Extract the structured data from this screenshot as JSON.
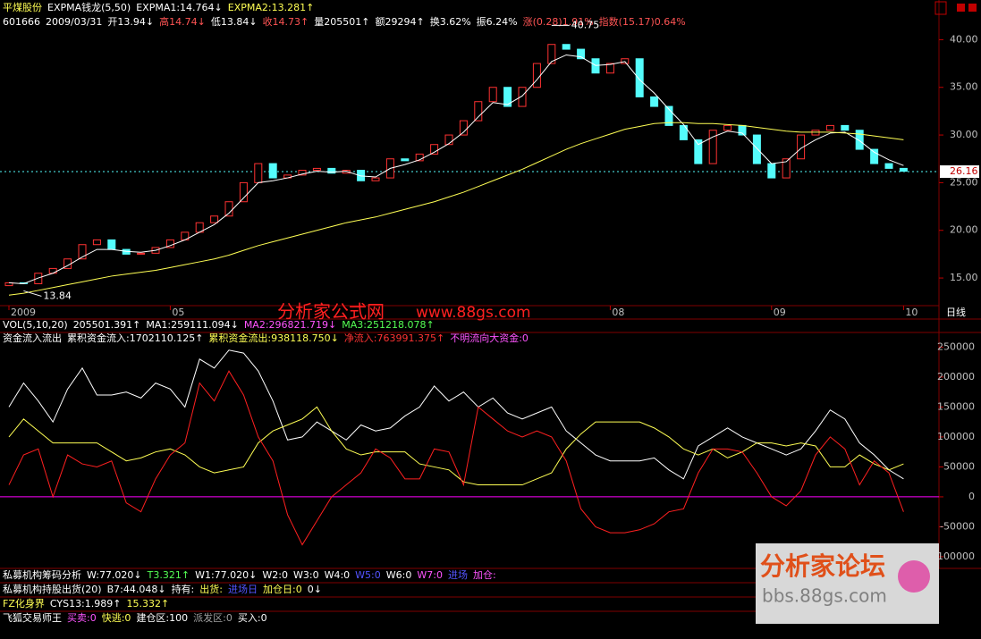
{
  "header": {
    "line1": [
      {
        "text": "平煤股份",
        "color": "#ffff54"
      },
      {
        "text": "EXPMA钱龙(5,50)",
        "color": "#ffffff"
      },
      {
        "text": "EXPMA1:14.764↓",
        "color": "#ffffff"
      },
      {
        "text": "EXPMA2:13.281↑",
        "color": "#ffff54"
      }
    ],
    "line2": [
      {
        "text": "601666",
        "color": "#ffffff"
      },
      {
        "text": "2009/03/31",
        "color": "#ffffff"
      },
      {
        "text": "开13.94↓",
        "color": "#ffffff"
      },
      {
        "text": "高14.74↓",
        "color": "#ff5454"
      },
      {
        "text": "低13.84↓",
        "color": "#ffffff"
      },
      {
        "text": "收14.73↑",
        "color": "#ff5454"
      },
      {
        "text": "量205501↑",
        "color": "#ffffff"
      },
      {
        "text": "额29294↑",
        "color": "#ffffff"
      },
      {
        "text": "换3.62%",
        "color": "#ffffff"
      },
      {
        "text": "振6.24%",
        "color": "#ffffff"
      },
      {
        "text": "涨(0.28)1.91%",
        "color": "#ff5454"
      },
      {
        "text": "指数(15.17)0.64%",
        "color": "#ff5454"
      }
    ]
  },
  "price_chart": {
    "type": "candlestick",
    "categories": [
      "2009",
      null,
      null,
      null,
      null,
      null,
      null,
      null,
      null,
      null,
      null,
      "05",
      null,
      null,
      null,
      null,
      null,
      null,
      null,
      null,
      null,
      null,
      null,
      null,
      null,
      null,
      null,
      null,
      null,
      null,
      null,
      null,
      null,
      null,
      null,
      null,
      null,
      null,
      null,
      null,
      null,
      "08",
      null,
      null,
      null,
      null,
      null,
      null,
      null,
      null,
      null,
      null,
      "09",
      null,
      null,
      null,
      null,
      null,
      null,
      null,
      null,
      "10"
    ],
    "open": [
      14.2,
      14.5,
      14.4,
      15.5,
      16,
      17,
      18.5,
      19,
      18,
      17.5,
      17.6,
      18.2,
      19,
      19.8,
      20.8,
      21.5,
      23,
      25,
      27,
      25.5,
      25.8,
      26.3,
      26.5,
      26,
      26.3,
      25.2,
      25.5,
      27.5,
      27.3,
      28,
      29,
      30,
      31.5,
      33.5,
      35,
      33,
      35,
      37.5,
      39.5,
      39,
      38,
      36.5,
      37.5,
      38,
      34,
      33,
      31,
      29.5,
      27,
      30.5,
      31,
      30,
      27,
      25.5,
      27.5,
      30,
      30.5,
      31,
      30.5,
      28.5,
      27,
      26.5
    ],
    "close": [
      14.5,
      14.4,
      15.5,
      16,
      17,
      18.5,
      19,
      18,
      17.5,
      17.6,
      18.2,
      19,
      19.8,
      20.8,
      21.5,
      23,
      25,
      27,
      25.5,
      25.8,
      26.3,
      26.5,
      26,
      26.3,
      25.2,
      25.5,
      27.5,
      27.3,
      28,
      29,
      30,
      31.5,
      33.5,
      35,
      33,
      35,
      37.5,
      39.5,
      39,
      38,
      36.5,
      37.5,
      38,
      34,
      33,
      31,
      29.5,
      27,
      30.5,
      31,
      30,
      27,
      25.5,
      27.5,
      30,
      30.5,
      31,
      30.5,
      28.5,
      27,
      26.5,
      26.2
    ],
    "up_color": "#ff3232",
    "down_color": "#54fcfc",
    "series": [
      {
        "color": "#ffffff",
        "values": [
          14.5,
          14.4,
          15,
          15.5,
          16.3,
          17.2,
          18,
          18,
          17.8,
          17.7,
          17.9,
          18.4,
          19,
          19.8,
          20.6,
          21.8,
          23.4,
          25,
          25.2,
          25.5,
          25.9,
          26.2,
          26.1,
          26.2,
          25.7,
          25.6,
          26.5,
          26.9,
          27.4,
          28.2,
          29.1,
          30.3,
          31.9,
          33.4,
          33.2,
          34.1,
          35.8,
          37.7,
          38.4,
          38.2,
          37.3,
          37.4,
          37.7,
          35.8,
          34.4,
          32.7,
          31.1,
          29,
          29.8,
          30.4,
          30.2,
          28.6,
          27,
          27.2,
          28.6,
          29.5,
          30.2,
          30.3,
          29.4,
          28.2,
          27.4,
          26.8
        ]
      },
      {
        "color": "#ffff54",
        "values": [
          13.2,
          13.4,
          13.7,
          14,
          14.3,
          14.6,
          14.9,
          15.2,
          15.4,
          15.6,
          15.8,
          16.1,
          16.4,
          16.7,
          17,
          17.4,
          17.9,
          18.4,
          18.8,
          19.2,
          19.6,
          20,
          20.4,
          20.8,
          21.1,
          21.4,
          21.8,
          22.2,
          22.6,
          23,
          23.5,
          24,
          24.6,
          25.2,
          25.8,
          26.4,
          27.1,
          27.8,
          28.5,
          29.1,
          29.6,
          30.1,
          30.6,
          30.9,
          31.2,
          31.3,
          31.3,
          31.2,
          31.2,
          31.1,
          31,
          30.8,
          30.6,
          30.4,
          30.3,
          30.3,
          30.3,
          30.2,
          30.1,
          29.9,
          29.7,
          29.5
        ]
      }
    ],
    "ylim": [
      12.1,
      42.1
    ],
    "yticks": [
      {
        "value": 15,
        "label": "15.00"
      },
      {
        "value": 20,
        "label": "20.00"
      },
      {
        "value": 25,
        "label": "25.00"
      },
      {
        "value": 30,
        "label": "30.00"
      },
      {
        "value": 35,
        "label": "35.00"
      },
      {
        "value": 40,
        "label": "40.00"
      }
    ],
    "max_label": 40.75,
    "min_label": 13.84,
    "last_price": 26.16,
    "period": "日线"
  },
  "watermark": {
    "name": "分析家公式网",
    "url": "www.88gs.com"
  },
  "indicator_header": {
    "vol_line": [
      {
        "text": "VOL(5,10,20)",
        "color": "#ffffff"
      },
      {
        "text": "205501.391↑",
        "color": "#ffffff"
      },
      {
        "text": "MA1:259111.094↓",
        "color": "#ffffff"
      },
      {
        "text": "MA2:296821.719↓",
        "color": "#ff54ff"
      },
      {
        "text": "MA3:251218.078↑",
        "color": "#54ff54"
      }
    ],
    "fund_line": [
      {
        "text": "资金流入流出",
        "color": "#ffffff"
      },
      {
        "text": "累积资金流入:1702110.125↑",
        "color": "#ffffff"
      },
      {
        "text": "累积资金流出:938118.750↓",
        "color": "#ffff54"
      },
      {
        "text": "净流入:763991.375↑",
        "color": "#ff3232"
      },
      {
        "text": "不明流向大资金:0",
        "color": "#ff54ff"
      }
    ]
  },
  "indicator_chart": {
    "type": "line",
    "ylim": [
      -115000,
      270000
    ],
    "yticks": [
      -100000,
      -50000,
      0,
      50000,
      100000,
      150000,
      200000,
      250000
    ],
    "baseline": 0,
    "baseline_color": "#ff00ff",
    "series": [
      {
        "color": "#ffffff",
        "values": [
          150000,
          190000,
          160000,
          125000,
          180000,
          215000,
          170000,
          170000,
          175000,
          165000,
          190000,
          180000,
          150000,
          230000,
          215000,
          245000,
          240000,
          210000,
          160000,
          95000,
          100000,
          125000,
          110000,
          95000,
          120000,
          110000,
          115000,
          135000,
          150000,
          185000,
          160000,
          175000,
          150000,
          165000,
          140000,
          130000,
          140000,
          150000,
          110000,
          90000,
          70000,
          60000,
          60000,
          60000,
          65000,
          45000,
          30000,
          85000,
          100000,
          115000,
          100000,
          90000,
          80000,
          70000,
          80000,
          110000,
          145000,
          130000,
          90000,
          70000,
          45000,
          30000
        ]
      },
      {
        "color": "#ffff54",
        "values": [
          100000,
          130000,
          110000,
          90000,
          90000,
          90000,
          90000,
          75000,
          60000,
          65000,
          75000,
          80000,
          70000,
          50000,
          40000,
          45000,
          50000,
          90000,
          110000,
          120000,
          130000,
          150000,
          110000,
          80000,
          70000,
          75000,
          75000,
          75000,
          55000,
          50000,
          45000,
          25000,
          20000,
          20000,
          20000,
          20000,
          30000,
          40000,
          80000,
          105000,
          125000,
          125000,
          125000,
          125000,
          115000,
          100000,
          80000,
          70000,
          80000,
          65000,
          75000,
          90000,
          90000,
          85000,
          90000,
          85000,
          50000,
          50000,
          70000,
          55000,
          45000,
          55000
        ]
      },
      {
        "color": "#ff2020",
        "values": [
          20000,
          70000,
          80000,
          0,
          70000,
          55000,
          50000,
          60000,
          -10000,
          -25000,
          30000,
          70000,
          90000,
          190000,
          160000,
          210000,
          170000,
          100000,
          60000,
          -30000,
          -80000,
          -40000,
          0,
          20000,
          40000,
          80000,
          65000,
          30000,
          30000,
          80000,
          75000,
          20000,
          150000,
          130000,
          110000,
          100000,
          110000,
          100000,
          60000,
          -20000,
          -50000,
          -60000,
          -60000,
          -55000,
          -45000,
          -25000,
          -20000,
          40000,
          80000,
          80000,
          75000,
          40000,
          0,
          -15000,
          10000,
          70000,
          100000,
          80000,
          20000,
          60000,
          40000,
          -25000
        ]
      }
    ]
  },
  "bottom_rows": [
    [
      {
        "text": "私募机构筹码分析",
        "color": "#ffffff"
      },
      {
        "text": "W:77.020↓",
        "color": "#ffffff"
      },
      {
        "text": "T3.321↑",
        "color": "#54ff54"
      },
      {
        "text": "W1:77.020↓",
        "color": "#ffffff"
      },
      {
        "text": "W2:0",
        "color": "#ffffff"
      },
      {
        "text": "W3:0",
        "color": "#ffffff"
      },
      {
        "text": "W4:0",
        "color": "#ffffff"
      },
      {
        "text": "W5:0",
        "color": "#5454ff"
      },
      {
        "text": "W6:0",
        "color": "#ffffff"
      },
      {
        "text": "W7:0",
        "color": "#ff54ff"
      },
      {
        "text": "进场",
        "color": "#5454ff"
      },
      {
        "text": "加仓:",
        "color": "#ff54ff"
      }
    ],
    [
      {
        "text": "私募机构持股出货(20)",
        "color": "#ffffff"
      },
      {
        "text": "B7:44.048↓",
        "color": "#ffffff"
      },
      {
        "text": "持有:",
        "color": "#ffffff"
      },
      {
        "text": "出货:",
        "color": "#ffff54"
      },
      {
        "text": "进场日",
        "color": "#5454ff"
      },
      {
        "text": "加仓日:0",
        "color": "#ffff54"
      },
      {
        "text": "0↓",
        "color": "#ffffff"
      }
    ],
    [
      {
        "text": "FZ化身界",
        "color": "#ffff54"
      },
      {
        "text": "CYS13:1.989↑",
        "color": "#ffffff"
      },
      {
        "text": "15.332↑",
        "color": "#ffff54"
      }
    ],
    [
      {
        "text": "飞狐交易师王",
        "color": "#ffffff"
      },
      {
        "text": "买卖:0",
        "color": "#ff54ff"
      },
      {
        "text": "快逃:0",
        "color": "#ffff54"
      },
      {
        "text": "建仓区:100",
        "color": "#ffffff"
      },
      {
        "text": "派发区:0",
        "color": "#a0a0a0"
      },
      {
        "text": "买入:0",
        "color": "#ffffff"
      }
    ]
  ],
  "logo": {
    "title": "分析家论坛",
    "url": "bbs.88gs.com"
  }
}
